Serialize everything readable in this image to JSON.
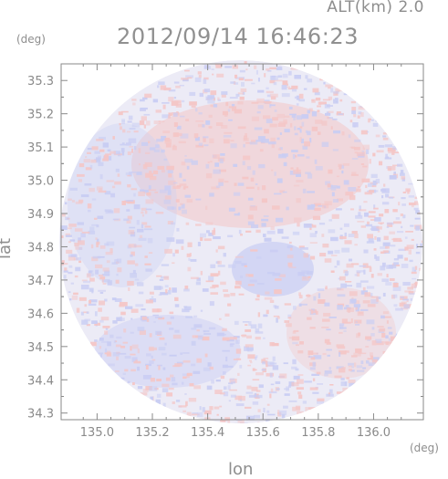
{
  "header": {
    "altitude": "ALT(km) 2.0",
    "timestamp": "2012/09/14 16:46:23"
  },
  "axes": {
    "y_unit": "(deg)",
    "x_unit": "(deg)",
    "y_label": "lat",
    "x_label": "lon",
    "x_ticks": [
      "135.0",
      "135.2",
      "135.4",
      "135.6",
      "135.8",
      "136.0"
    ],
    "y_ticks": [
      "35.3",
      "35.2",
      "35.1",
      "35.0",
      "34.9",
      "34.8",
      "34.7",
      "34.6",
      "34.5",
      "34.4",
      "34.3"
    ],
    "x_range": [
      134.87,
      136.18
    ],
    "y_range": [
      34.28,
      35.35
    ]
  },
  "map": {
    "field": "radar scan disk, weak positive/negative values",
    "center_lon": 135.52,
    "center_lat": 34.815,
    "colors": {
      "positive": "#f4c6c6",
      "negative": "#c9cdf3",
      "neutral": "#ecebf6",
      "axis": "#8a8a8a"
    }
  }
}
